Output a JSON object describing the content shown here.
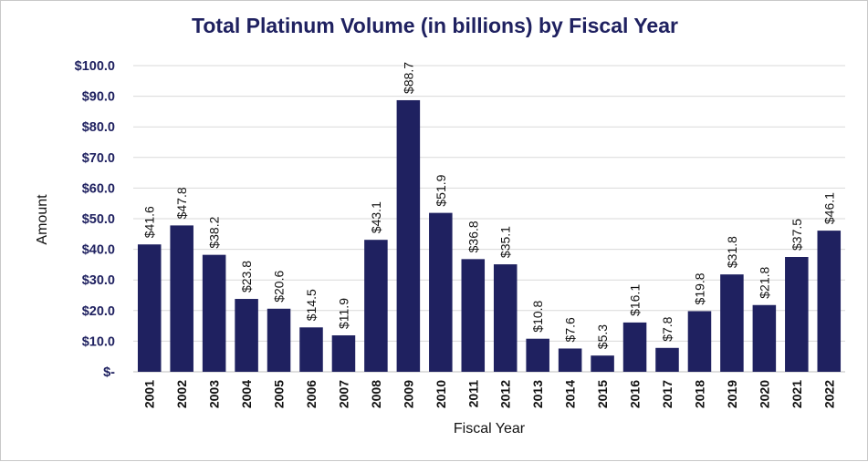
{
  "chart_data": {
    "type": "bar",
    "title": "Total Platinum Volume (in billions) by Fiscal Year",
    "xlabel": "Fiscal Year",
    "ylabel": "Amount",
    "categories": [
      "2001",
      "2002",
      "2003",
      "2004",
      "2005",
      "2006",
      "2007",
      "2008",
      "2009",
      "2010",
      "2011",
      "2012",
      "2013",
      "2014",
      "2015",
      "2016",
      "2017",
      "2018",
      "2019",
      "2020",
      "2021",
      "2022"
    ],
    "values": [
      41.6,
      47.8,
      38.2,
      23.8,
      20.6,
      14.5,
      11.9,
      43.1,
      88.7,
      51.9,
      36.8,
      35.1,
      10.8,
      7.6,
      5.3,
      16.1,
      7.8,
      19.8,
      31.8,
      21.8,
      37.5,
      46.1
    ],
    "data_labels": [
      "$41.6",
      "$47.8",
      "$38.2",
      "$23.8",
      "$20.6",
      "$14.5",
      "$11.9",
      "$43.1",
      "$88.7",
      "$51.9",
      "$36.8",
      "$35.1",
      "$10.8",
      "$7.6",
      "$5.3",
      "$16.1",
      "$7.8",
      "$19.8",
      "$31.8",
      "$21.8",
      "$37.5",
      "$46.1"
    ],
    "y_ticks": [
      0,
      10,
      20,
      30,
      40,
      50,
      60,
      70,
      80,
      90,
      100
    ],
    "y_tick_labels": [
      "$-",
      "$10.0",
      "$20.0",
      "$30.0",
      "$40.0",
      "$50.0",
      "$60.0",
      "$70.0",
      "$80.0",
      "$90.0",
      "$100.0"
    ],
    "ylim": [
      0,
      100
    ],
    "grid": true,
    "legend": "none",
    "bar_color": "#1f2160",
    "title_color": "#1f2160"
  }
}
